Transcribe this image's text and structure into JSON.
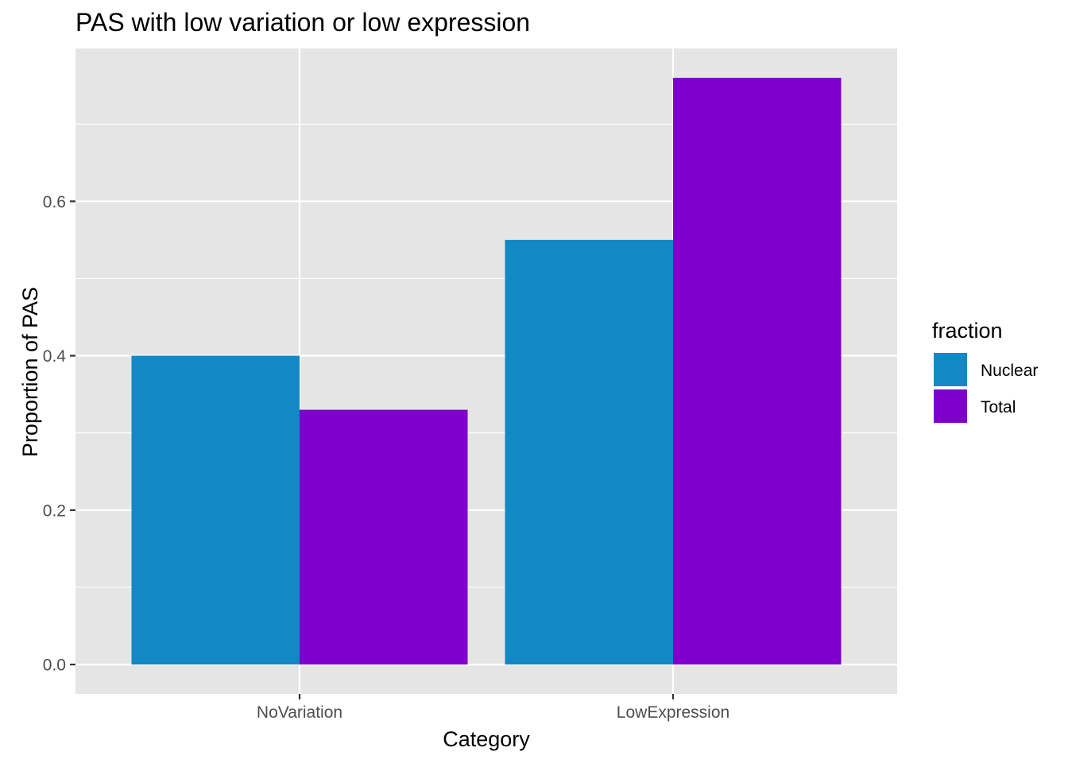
{
  "chart_data": {
    "type": "bar",
    "title": "PAS with low variation or low expression",
    "xlabel": "Category",
    "ylabel": "Proportion of PAS",
    "categories": [
      "NoVariation",
      "LowExpression"
    ],
    "series": [
      {
        "name": "Nuclear",
        "color": "#1288C4",
        "values": [
          0.4,
          0.55
        ]
      },
      {
        "name": "Total",
        "color": "#7F00CC",
        "values": [
          0.33,
          0.76
        ]
      }
    ],
    "yticks": [
      0.0,
      0.2,
      0.4,
      0.6
    ],
    "ytick_labels": [
      "0.0",
      "0.2",
      "0.4",
      "0.6"
    ],
    "ylim": [
      -0.038,
      0.798
    ],
    "grid": true,
    "legend": {
      "title": "fraction",
      "placement": "right"
    },
    "panel_background": "#E5E5E5"
  }
}
